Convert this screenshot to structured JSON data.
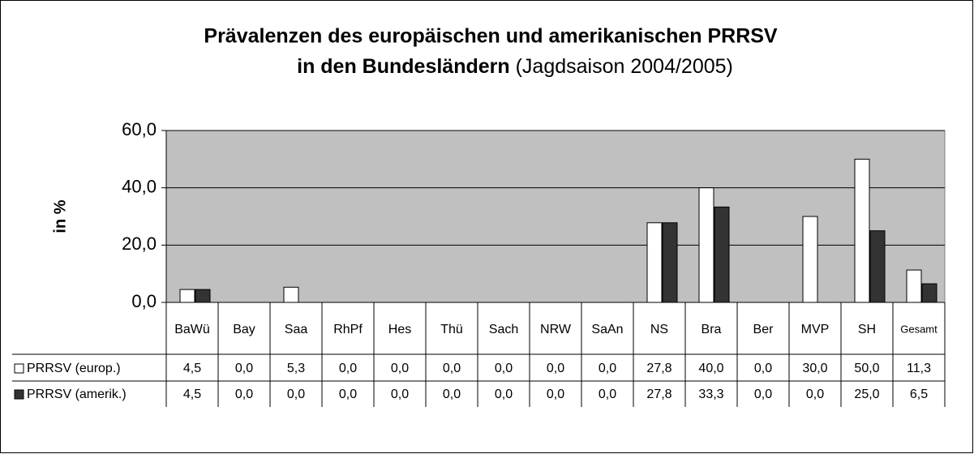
{
  "chart_data": {
    "type": "bar",
    "title": [
      "Prävalenzen des europäischen und amerikanischen PRRSV",
      "in den Bundesländern"
    ],
    "title_note": "(Jagdsaison 2004/2005)",
    "y_label": "in %",
    "categories": [
      "BaWü",
      "Bay",
      "Saa",
      "RhPf",
      "Hes",
      "Thü",
      "Sach",
      "NRW",
      "SaAn",
      "NS",
      "Bra",
      "Ber",
      "MVP",
      "SH",
      "Gesamt"
    ],
    "series": [
      {
        "name": "PRRSV (europ.)",
        "color": "#ffffff",
        "values": [
          4.5,
          0,
          5.3,
          0,
          0,
          0,
          0,
          0,
          0,
          27.8,
          40,
          0,
          30,
          50,
          11.3
        ],
        "value_labels": [
          "4,5",
          "0,0",
          "5,3",
          "0,0",
          "0,0",
          "0,0",
          "0,0",
          "0,0",
          "0,0",
          "27,8",
          "40,0",
          "0,0",
          "30,0",
          "50,0",
          "11,3"
        ]
      },
      {
        "name": "PRRSV (amerik.)",
        "color": "#333333",
        "values": [
          4.5,
          0,
          0,
          0,
          0,
          0,
          0,
          0,
          0,
          27.8,
          33.3,
          0,
          0,
          25,
          6.5
        ],
        "value_labels": [
          "4,5",
          "0,0",
          "0,0",
          "0,0",
          "0,0",
          "0,0",
          "0,0",
          "0,0",
          "0,0",
          "27,8",
          "33,3",
          "0,0",
          "0,0",
          "25,0",
          "6,5"
        ]
      }
    ],
    "ylim": [
      0,
      60
    ],
    "yticks": [
      {
        "value": 0,
        "label": "0,0"
      },
      {
        "value": 20,
        "label": "20,0"
      },
      {
        "value": 40,
        "label": "40,0"
      },
      {
        "value": 60,
        "label": "60,0"
      }
    ],
    "grid": true,
    "plot_background": "#c0c0c0"
  }
}
